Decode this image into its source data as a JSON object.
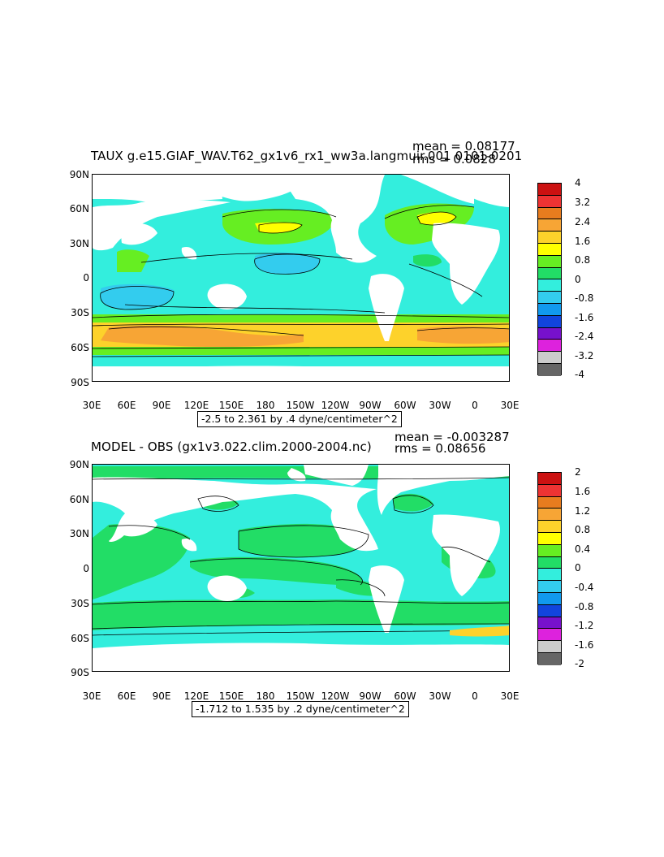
{
  "panels": [
    {
      "title": "TAUX g.e15.GIAF_WAV.T62_gx1v6_rx1_ww3a.langmuir.001 0101-0201",
      "mean": "mean = 0.08177",
      "rms": "rms = 0.0828",
      "range_label": "-2.5 to 2.361 by .4 dyne/centimeter^2",
      "lat_labels": [
        "90N",
        "60N",
        "30N",
        "0",
        "30S",
        "60S",
        "90S"
      ],
      "lon_labels": [
        "30E",
        "60E",
        "90E",
        "120E",
        "150E",
        "180",
        "150W",
        "120W",
        "90W",
        "60W",
        "30W",
        "0",
        "30E"
      ],
      "colorbar_labels": [
        "4",
        "3.2",
        "2.4",
        "1.6",
        "0.8",
        "0",
        "-0.8",
        "-1.6",
        "-2.4",
        "-3.2",
        "-4"
      ],
      "colorbar_colors": [
        "#cc1111",
        "#ee3333",
        "#e87c1e",
        "#f7a535",
        "#fdd22b",
        "#ffff00",
        "#66ee22",
        "#22dd66",
        "#33eedd",
        "#33ccee",
        "#1199ee",
        "#1144dd",
        "#7711cc",
        "#dd22dd",
        "#cccccc",
        "#666666"
      ]
    },
    {
      "title": "MODEL - OBS (gx1v3.022.clim.2000-2004.nc)",
      "mean": "mean = -0.003287",
      "rms": "rms = 0.08656",
      "range_label": "-1.712 to 1.535 by .2 dyne/centimeter^2",
      "lat_labels": [
        "90N",
        "60N",
        "30N",
        "0",
        "30S",
        "60S",
        "90S"
      ],
      "lon_labels": [
        "30E",
        "60E",
        "90E",
        "120E",
        "150E",
        "180",
        "150W",
        "120W",
        "90W",
        "60W",
        "30W",
        "0",
        "30E"
      ],
      "colorbar_labels": [
        "2",
        "1.6",
        "1.2",
        "0.8",
        "0.4",
        "0",
        "-0.4",
        "-0.8",
        "-1.2",
        "-1.6",
        "-2"
      ],
      "colorbar_colors": [
        "#cc1111",
        "#ee3333",
        "#e87c1e",
        "#f7a535",
        "#fdd22b",
        "#ffff00",
        "#66ee22",
        "#22dd66",
        "#33eedd",
        "#33ccee",
        "#1199ee",
        "#1144dd",
        "#7711cc",
        "#dd22dd",
        "#cccccc",
        "#666666"
      ]
    }
  ]
}
